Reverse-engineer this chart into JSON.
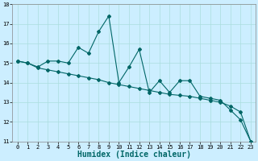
{
  "xlabel": "Humidex (Indice chaleur)",
  "background_color": "#cceeff",
  "line_color": "#006666",
  "x_values": [
    0,
    1,
    2,
    3,
    4,
    5,
    6,
    7,
    8,
    9,
    10,
    11,
    12,
    13,
    14,
    15,
    16,
    17,
    18,
    19,
    20,
    21,
    22,
    23
  ],
  "y_jagged": [
    15.1,
    15.0,
    14.8,
    15.1,
    15.1,
    15.0,
    15.8,
    15.5,
    16.6,
    17.4,
    14.0,
    14.8,
    15.7,
    13.5,
    14.1,
    13.5,
    14.1,
    14.1,
    13.3,
    13.2,
    13.1,
    12.6,
    12.1,
    11.0
  ],
  "y_trend": [
    15.1,
    15.0,
    14.75,
    14.65,
    14.55,
    14.45,
    14.35,
    14.25,
    14.15,
    14.0,
    13.9,
    13.8,
    13.7,
    13.6,
    13.5,
    13.4,
    13.35,
    13.3,
    13.2,
    13.1,
    13.0,
    12.8,
    12.5,
    11.0
  ],
  "ylim": [
    11,
    18
  ],
  "xlim": [
    -0.5,
    23.5
  ],
  "yticks": [
    11,
    12,
    13,
    14,
    15,
    16,
    17,
    18
  ],
  "xticks": [
    0,
    1,
    2,
    3,
    4,
    5,
    6,
    7,
    8,
    9,
    10,
    11,
    12,
    13,
    14,
    15,
    16,
    17,
    18,
    19,
    20,
    21,
    22,
    23
  ],
  "grid_color": "#aadddd",
  "marker": "D",
  "marker_size": 2,
  "line_width": 0.8,
  "xlabel_fontsize": 7,
  "tick_fontsize": 5
}
